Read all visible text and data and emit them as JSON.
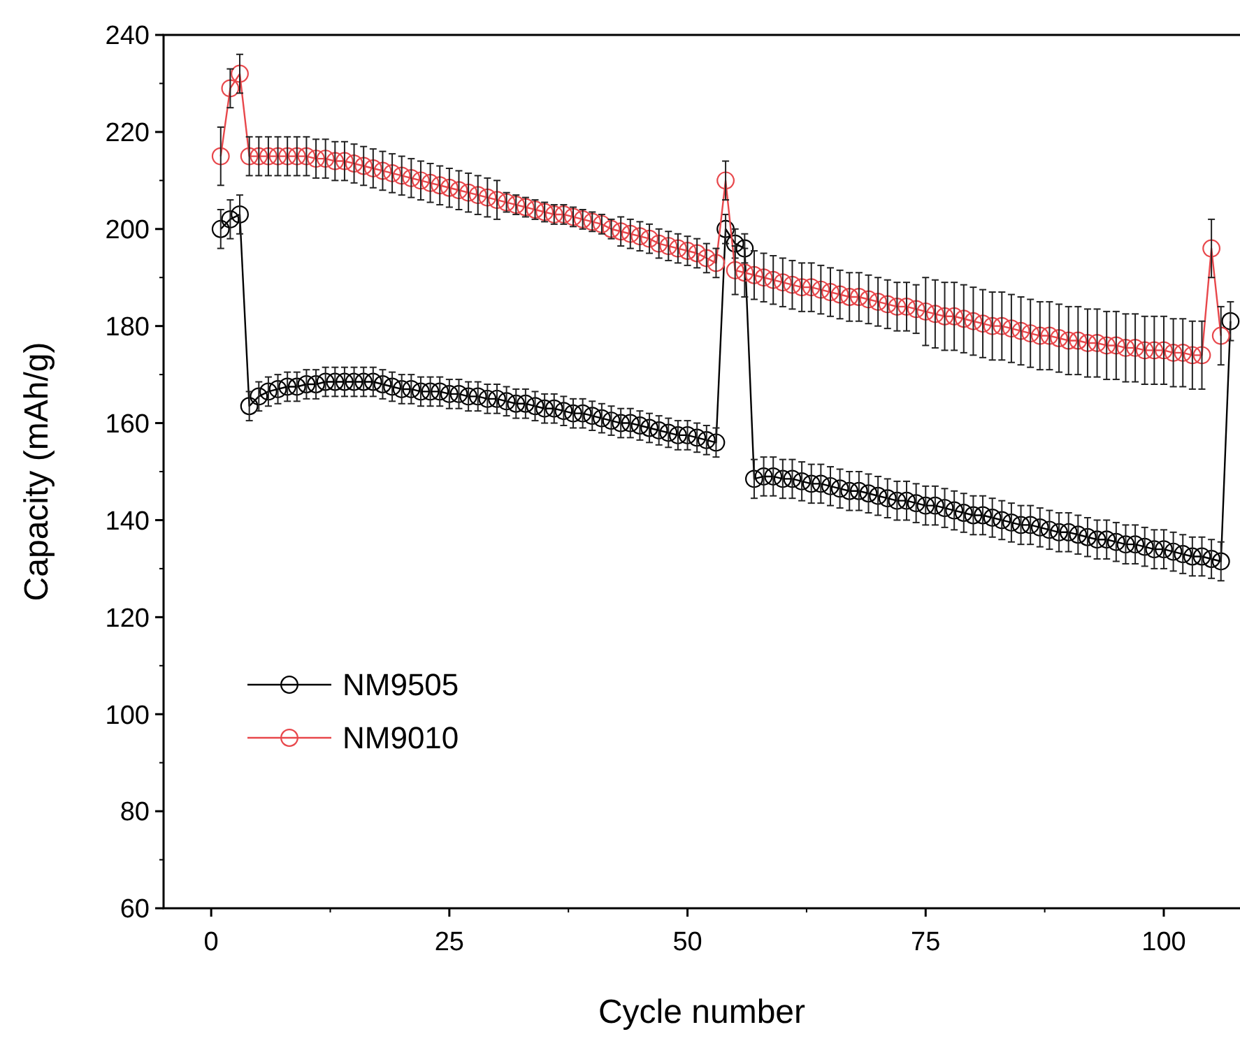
{
  "chart_data": {
    "type": "line",
    "xlabel": "Cycle number",
    "ylabel": "Capacity (mAh/g)",
    "xlim": [
      -5,
      108
    ],
    "ylim": [
      60,
      240
    ],
    "xticks": [
      0,
      25,
      50,
      75,
      100
    ],
    "yticks": [
      60,
      80,
      100,
      120,
      140,
      160,
      180,
      200,
      220,
      240
    ],
    "marker": "circle",
    "legend": "bottom left",
    "grid": false,
    "x": [
      1,
      2,
      3,
      4,
      5,
      6,
      7,
      8,
      9,
      10,
      11,
      12,
      13,
      14,
      15,
      16,
      17,
      18,
      19,
      20,
      21,
      22,
      23,
      24,
      25,
      26,
      27,
      28,
      29,
      30,
      31,
      32,
      33,
      34,
      35,
      36,
      37,
      38,
      39,
      40,
      41,
      42,
      43,
      44,
      45,
      46,
      47,
      48,
      49,
      50,
      51,
      52,
      53,
      54,
      55,
      56,
      57,
      58,
      59,
      60,
      61,
      62,
      63,
      64,
      65,
      66,
      67,
      68,
      69,
      70,
      71,
      72,
      73,
      74,
      75,
      76,
      77,
      78,
      79,
      80,
      81,
      82,
      83,
      84,
      85,
      86,
      87,
      88,
      89,
      90,
      91,
      92,
      93,
      94,
      95,
      96,
      97,
      98,
      99,
      100,
      101,
      102,
      103,
      104,
      105,
      106,
      107
    ],
    "series": [
      {
        "name": "NM9505",
        "color": "#000000",
        "values": [
          200,
          202,
          203,
          163.5,
          165.5,
          166.5,
          167,
          167.5,
          167.5,
          168,
          168,
          168.5,
          168.5,
          168.5,
          168.5,
          168.5,
          168.5,
          168,
          167.5,
          167,
          167,
          166.5,
          166.5,
          166.5,
          166,
          166,
          165.5,
          165.5,
          165,
          165,
          164.5,
          164,
          164,
          163.5,
          163,
          163,
          162.5,
          162,
          162,
          161.5,
          161,
          160.5,
          160,
          160,
          159.5,
          159,
          158.5,
          158,
          157.5,
          157.5,
          157,
          156.5,
          156,
          200,
          197,
          196,
          148.5,
          149,
          149,
          148.5,
          148.5,
          148,
          147.5,
          147.5,
          147,
          146.5,
          146,
          146,
          145.5,
          145,
          144.5,
          144,
          144,
          143.5,
          143,
          143,
          142.5,
          142,
          141.5,
          141,
          141,
          140.5,
          140,
          139.5,
          139,
          139,
          138.5,
          138,
          137.5,
          137.5,
          137,
          136.5,
          136,
          136,
          135.5,
          135,
          135,
          134.5,
          134,
          134,
          133.5,
          133,
          132.5,
          132.5,
          132,
          131.5,
          181
        ],
        "errors": [
          4,
          4,
          4,
          3,
          3,
          3,
          3,
          3,
          3,
          3,
          3,
          3,
          3,
          3,
          3,
          3,
          3,
          3,
          3,
          3,
          3,
          3,
          3,
          3,
          3,
          3,
          3,
          3,
          3,
          3,
          3,
          3,
          3,
          3,
          3,
          3,
          3,
          3,
          3,
          3,
          3,
          3,
          3,
          3,
          3,
          3,
          3,
          3,
          3,
          3,
          3,
          3,
          3,
          3,
          3,
          3,
          4,
          4,
          4,
          4,
          4,
          4,
          4,
          4,
          4,
          4,
          4,
          4,
          4,
          4,
          4,
          4,
          4,
          4,
          4,
          4,
          4,
          4,
          4,
          4,
          4,
          4,
          4,
          4,
          4,
          4,
          4,
          4,
          4,
          4,
          4,
          4,
          4,
          4,
          4,
          4,
          4,
          4,
          4,
          4,
          4,
          4,
          4,
          4,
          4,
          4,
          4
        ]
      },
      {
        "name": "NM9010",
        "color": "#e8474b",
        "values": [
          215,
          229,
          232,
          215,
          215,
          215,
          215,
          215,
          215,
          215,
          214.5,
          214.5,
          214,
          214,
          213.5,
          213,
          212.5,
          212,
          211.5,
          211,
          210.5,
          210,
          209.5,
          209,
          208.5,
          208,
          207.5,
          207,
          206.5,
          206,
          205.5,
          205,
          204.5,
          204,
          203.5,
          203,
          203,
          202.5,
          202,
          201.5,
          201,
          200,
          199.5,
          199,
          198.5,
          198,
          197,
          196.5,
          196,
          195.5,
          195,
          194,
          193,
          210,
          191.5,
          191,
          190.5,
          190,
          189.5,
          189,
          188.5,
          188,
          188,
          187.5,
          187,
          186.5,
          186,
          186,
          185.5,
          185,
          184.5,
          184,
          184,
          183.5,
          183,
          182.5,
          182,
          182,
          181.5,
          181,
          180.5,
          180,
          180,
          179.5,
          179,
          178.5,
          178,
          178,
          177.5,
          177,
          177,
          176.5,
          176.5,
          176,
          176,
          175.5,
          175.5,
          175,
          175,
          175,
          174.5,
          174.5,
          174,
          174,
          196,
          178,
          null
        ],
        "errors": [
          6,
          4,
          4,
          4,
          4,
          4,
          4,
          4,
          4,
          4,
          4,
          4,
          4,
          4,
          4,
          4,
          4,
          4,
          4,
          4,
          4,
          4,
          4,
          4,
          4,
          4,
          4,
          4,
          4,
          4,
          2,
          2,
          2,
          2,
          2,
          2,
          2,
          2,
          2,
          2,
          2,
          2,
          3,
          3,
          3,
          3,
          3,
          3,
          3,
          3,
          3,
          3,
          3,
          4,
          5,
          5,
          5,
          5,
          5,
          5,
          5,
          5,
          5,
          5,
          5,
          5,
          5,
          5,
          5,
          5,
          5,
          5,
          5,
          5,
          7,
          7,
          7,
          7,
          7,
          7,
          7,
          7,
          7,
          7,
          7,
          7,
          7,
          7,
          7,
          7,
          7,
          7,
          7,
          7,
          7,
          7,
          7,
          7,
          7,
          7,
          7,
          7,
          7,
          7,
          6,
          6,
          null
        ]
      }
    ]
  }
}
